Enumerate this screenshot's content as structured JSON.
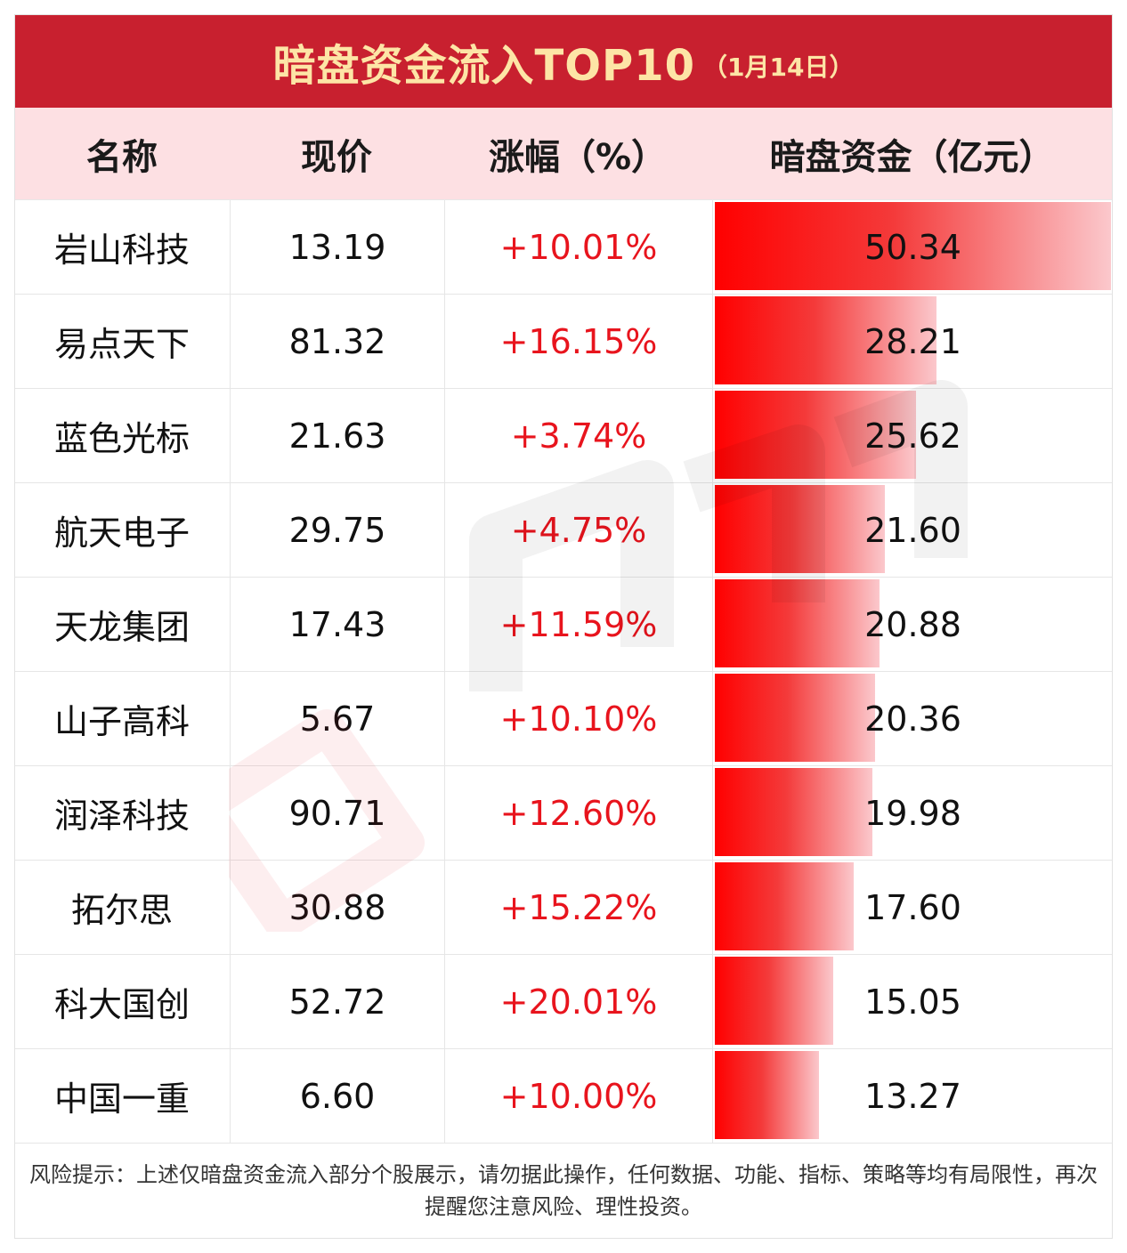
{
  "header": {
    "title": "暗盘资金流入TOP10",
    "date": "（1月14日）"
  },
  "columns": [
    "名称",
    "现价",
    "涨幅（%）",
    "暗盘资金（亿元）"
  ],
  "rows": [
    {
      "name": "岩山科技",
      "price": "13.19",
      "change": "+10.01%",
      "dark_pool": "50.34"
    },
    {
      "name": "易点天下",
      "price": "81.32",
      "change": "+16.15%",
      "dark_pool": "28.21"
    },
    {
      "name": "蓝色光标",
      "price": "21.63",
      "change": "+3.74%",
      "dark_pool": "25.62"
    },
    {
      "name": "航天电子",
      "price": "29.75",
      "change": "+4.75%",
      "dark_pool": "21.60"
    },
    {
      "name": "天龙集团",
      "price": "17.43",
      "change": "+11.59%",
      "dark_pool": "20.88"
    },
    {
      "name": "山子高科",
      "price": "5.67",
      "change": "+10.10%",
      "dark_pool": "20.36"
    },
    {
      "name": "润泽科技",
      "price": "90.71",
      "change": "+12.60%",
      "dark_pool": "19.98"
    },
    {
      "name": "拓尔思",
      "price": "30.88",
      "change": "+15.22%",
      "dark_pool": "17.60"
    },
    {
      "name": "科大国创",
      "price": "52.72",
      "change": "+20.01%",
      "dark_pool": "15.05"
    },
    {
      "name": "中国一重",
      "price": "6.60",
      "change": "+10.00%",
      "dark_pool": "13.27"
    }
  ],
  "footer": {
    "disclaimer": "风险提示：上述仅暗盘资金流入部分个股展示，请勿据此操作，任何数据、功能、指标、策略等均有局限性，再次提醒您注意风险、理性投资。"
  },
  "colors": {
    "title_bg": "#c8202f",
    "title_text": "#fde5a6",
    "header_bg": "#fde0e3",
    "positive": "#e8141d",
    "bar_start": "#ff0000",
    "bar_end": "#fbc8cc"
  },
  "chart_data": {
    "type": "table",
    "title": "暗盘资金流入TOP10",
    "subtitle": "（1月14日）",
    "columns": [
      "名称",
      "现价",
      "涨幅（%）",
      "暗盘资金（亿元）"
    ],
    "categories": [
      "岩山科技",
      "易点天下",
      "蓝色光标",
      "航天电子",
      "天龙集团",
      "山子高科",
      "润泽科技",
      "拓尔思",
      "科大国创",
      "中国一重"
    ],
    "series": [
      {
        "name": "现价",
        "values": [
          13.19,
          81.32,
          21.63,
          29.75,
          17.43,
          5.67,
          90.71,
          30.88,
          52.72,
          6.6
        ]
      },
      {
        "name": "涨幅（%）",
        "values": [
          10.01,
          16.15,
          3.74,
          4.75,
          11.59,
          10.1,
          12.6,
          15.22,
          20.01,
          10.0
        ]
      },
      {
        "name": "暗盘资金（亿元）",
        "values": [
          50.34,
          28.21,
          25.62,
          21.6,
          20.88,
          20.36,
          19.98,
          17.6,
          15.05,
          13.27
        ]
      }
    ],
    "bar_column": "暗盘资金（亿元）"
  }
}
